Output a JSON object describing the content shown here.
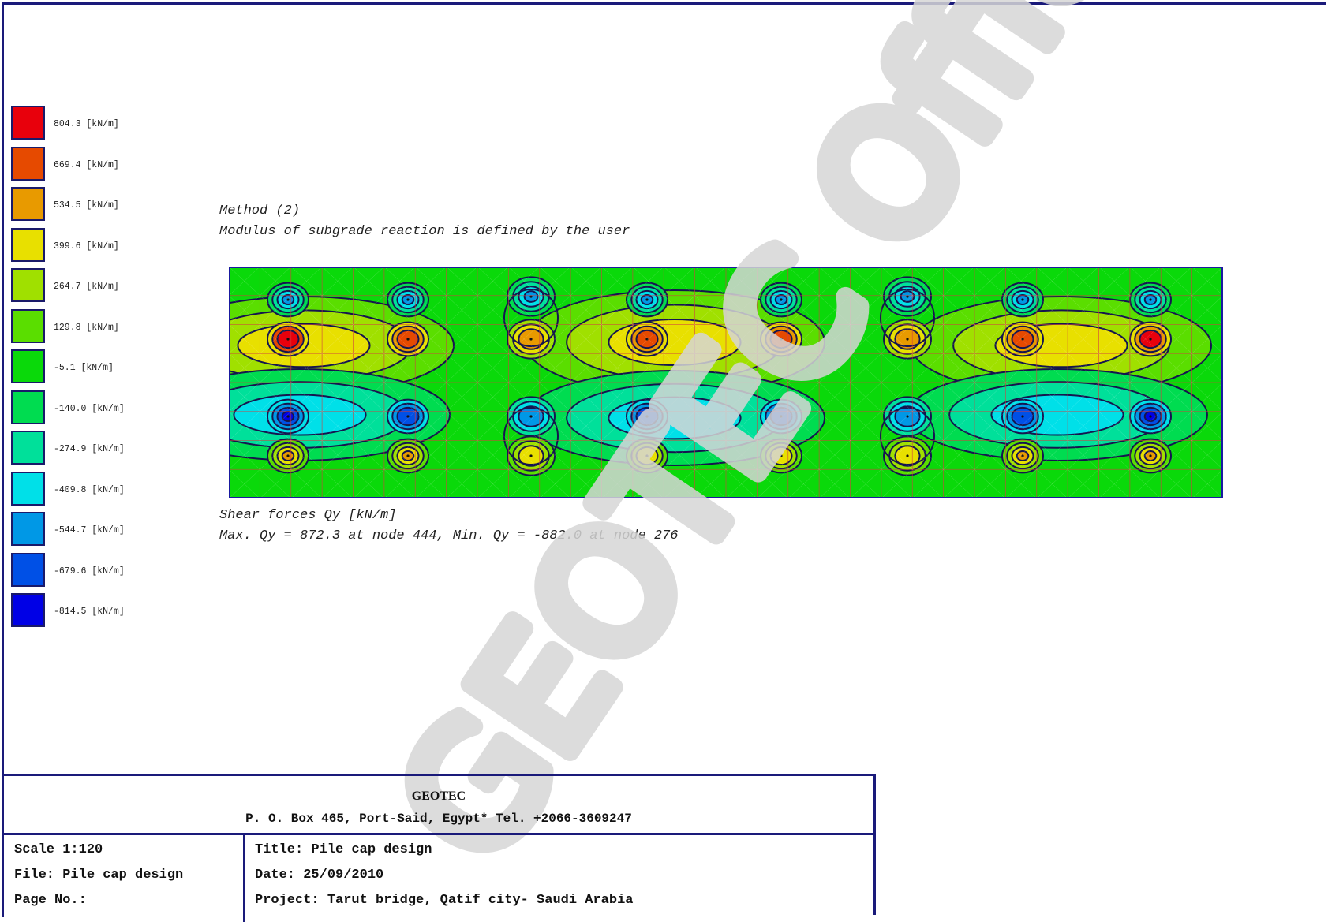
{
  "legend": {
    "items": [
      {
        "label": "804.3 [kN/m]",
        "color": "#e8000c"
      },
      {
        "label": "669.4 [kN/m]",
        "color": "#e64a00"
      },
      {
        "label": "534.5 [kN/m]",
        "color": "#e89a00"
      },
      {
        "label": "399.6 [kN/m]",
        "color": "#e8e000"
      },
      {
        "label": "264.7 [kN/m]",
        "color": "#a0e000"
      },
      {
        "label": "129.8 [kN/m]",
        "color": "#5ade00"
      },
      {
        "label": "-5.1 [kN/m]",
        "color": "#0ad90a"
      },
      {
        "label": "-140.0 [kN/m]",
        "color": "#00dc50"
      },
      {
        "label": "-274.9 [kN/m]",
        "color": "#00e09a"
      },
      {
        "label": "-409.8 [kN/m]",
        "color": "#00e0e8"
      },
      {
        "label": "-544.7 [kN/m]",
        "color": "#0098e6"
      },
      {
        "label": "-679.6 [kN/m]",
        "color": "#0050e6"
      },
      {
        "label": "-814.5 [kN/m]",
        "color": "#0000e6"
      }
    ]
  },
  "method": {
    "line1": "Method (2)",
    "line2": "Modulus of subgrade reaction is defined by the user"
  },
  "result": {
    "line1": "Shear forces Qy [kN/m]",
    "line2": "Max. Qy = 872.3 at node 444, Min. Qy = -882.0 at node 276"
  },
  "plot": {
    "background_color": "#0ad90a",
    "border_color": "#1a1aa0",
    "mesh_color": "#d04040",
    "contour_line_color": "#15154f",
    "mesh_columns": 32,
    "mesh_rows": 8
  },
  "watermark": {
    "text": "GEOTEC Office - Sample",
    "color": "#d6d6d6"
  },
  "title_block": {
    "company": "GEOTEC",
    "address": "P. O. Box 465, Port-Said, Egypt* Tel. +2066-3609247",
    "scale": "Scale 1:120",
    "file": "File: Pile cap design",
    "page_no": "Page No.:",
    "title": "Title: Pile cap design",
    "date": "Date: 25/09/2010",
    "project": "Project: Tarut bridge, Qatif city- Saudi Arabia"
  }
}
